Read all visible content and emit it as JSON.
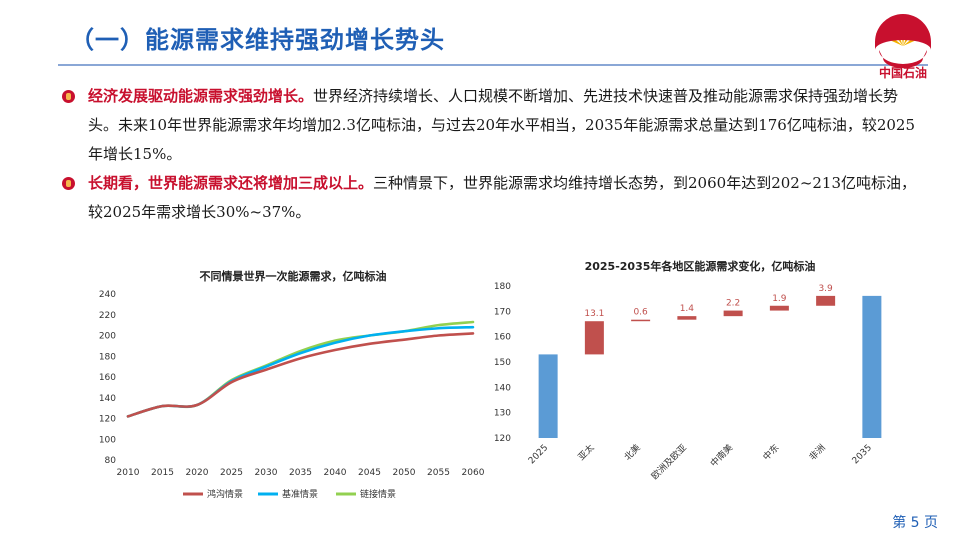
{
  "header": {
    "title": "（一）能源需求维持强劲增长势头",
    "logo_text": "中国石油"
  },
  "bullets": [
    {
      "highlight": "经济发展驱动能源需求强劲增长。",
      "text": "世界经济持续增长、人口规模不断增加、先进技术快速普及推动能源需求保持强劲增长势头。未来10年世界能源需求年均增加2.3亿吨标油，与过去20年水平相当，2035年能源需求总量达到176亿吨标油，较2025年增长15%。"
    },
    {
      "highlight": "长期看，世界能源需求还将增加三成以上。",
      "text": "三种情景下，世界能源需求均维持增长态势，到2060年达到202~213亿吨标油，较2025年需求增长30%~37%。"
    }
  ],
  "footer": {
    "page": "第 5 页"
  },
  "colors": {
    "brand_blue": "#1f5fb5",
    "brand_red": "#c8102e",
    "series_red": "#c0504d",
    "series_blue": "#00b0f0",
    "series_green": "#92d050",
    "bar_blue": "#5b9bd5",
    "bar_red": "#c0504d"
  },
  "chart_data": [
    {
      "type": "line",
      "title": "不同情景世界一次能源需求，亿吨标油",
      "x": [
        2010,
        2015,
        2020,
        2025,
        2030,
        2035,
        2040,
        2045,
        2050,
        2055,
        2060
      ],
      "ylim": [
        80,
        240
      ],
      "yticks": [
        80,
        100,
        120,
        140,
        160,
        180,
        200,
        220,
        240
      ],
      "legend": "bottom",
      "grid": false,
      "series": [
        {
          "name": "鸿沟情景",
          "color": "#c0504d",
          "values": [
            122,
            132,
            133,
            155,
            167,
            178,
            186,
            192,
            196,
            200,
            202
          ]
        },
        {
          "name": "基准情景",
          "color": "#00b0f0",
          "values": [
            122,
            132,
            133,
            156,
            170,
            183,
            193,
            200,
            204,
            207,
            208
          ]
        },
        {
          "name": "链接情景",
          "color": "#92d050",
          "values": [
            122,
            132,
            133,
            157,
            171,
            185,
            195,
            200,
            204,
            210,
            213
          ]
        }
      ]
    },
    {
      "type": "bar",
      "subtype": "waterfall",
      "title": "2025-2035年各地区能源需求变化，亿吨标油",
      "ylim": [
        120,
        180
      ],
      "yticks": [
        120,
        130,
        140,
        150,
        160,
        170,
        180
      ],
      "grid": false,
      "categories": [
        "2025",
        "亚太",
        "北美",
        "欧洲及欧亚",
        "中南美",
        "中东",
        "非洲",
        "2035"
      ],
      "start": 153.0,
      "increments": [
        13.1,
        0.6,
        1.4,
        2.2,
        1.9,
        3.9
      ],
      "increment_labels": [
        "13.1",
        "0.6",
        "1.4",
        "2.2",
        "1.9",
        "3.9"
      ],
      "end": 176.1
    }
  ]
}
